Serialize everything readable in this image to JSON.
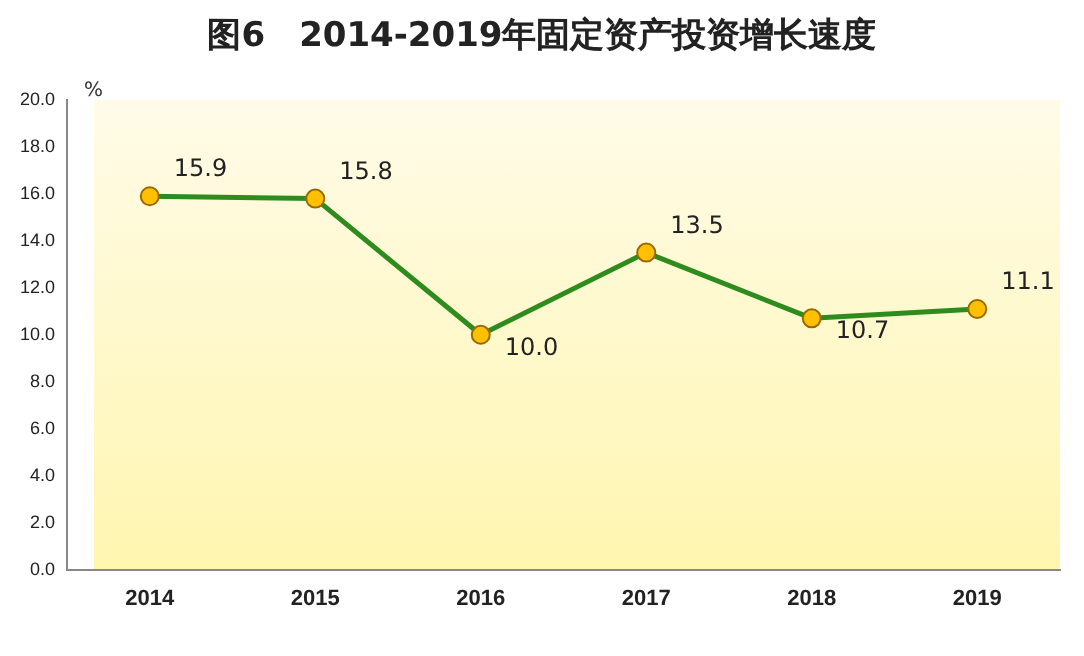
{
  "chart_data": {
    "type": "line",
    "title": "图6　2014-2019年固定资产投资增长速度",
    "ylabel": "%",
    "categories": [
      "2014",
      "2015",
      "2016",
      "2017",
      "2018",
      "2019"
    ],
    "series": [
      {
        "color": "#2e8b1e",
        "values": [
          15.9,
          15.8,
          10.0,
          13.5,
          10.7,
          11.1
        ],
        "value_labels": [
          "15.9",
          "15.8",
          "10.0",
          "13.5",
          "10.7",
          "11.1"
        ]
      }
    ],
    "ylim": [
      0,
      20
    ],
    "yticks": [
      {
        "value": 0,
        "label": "0.0"
      },
      {
        "value": 2,
        "label": "2.0"
      },
      {
        "value": 4,
        "label": "4.0"
      },
      {
        "value": 6,
        "label": "6.0"
      },
      {
        "value": 8,
        "label": "8.0"
      },
      {
        "value": 10,
        "label": "10.0"
      },
      {
        "value": 12,
        "label": "12.0"
      },
      {
        "value": 14,
        "label": "14.0"
      },
      {
        "value": 16,
        "label": "16.0"
      },
      {
        "value": 18,
        "label": "18.0"
      },
      {
        "value": 20,
        "label": "20.0"
      }
    ],
    "grid": false,
    "legend": false,
    "marker": "circle",
    "line_style": "solid"
  }
}
